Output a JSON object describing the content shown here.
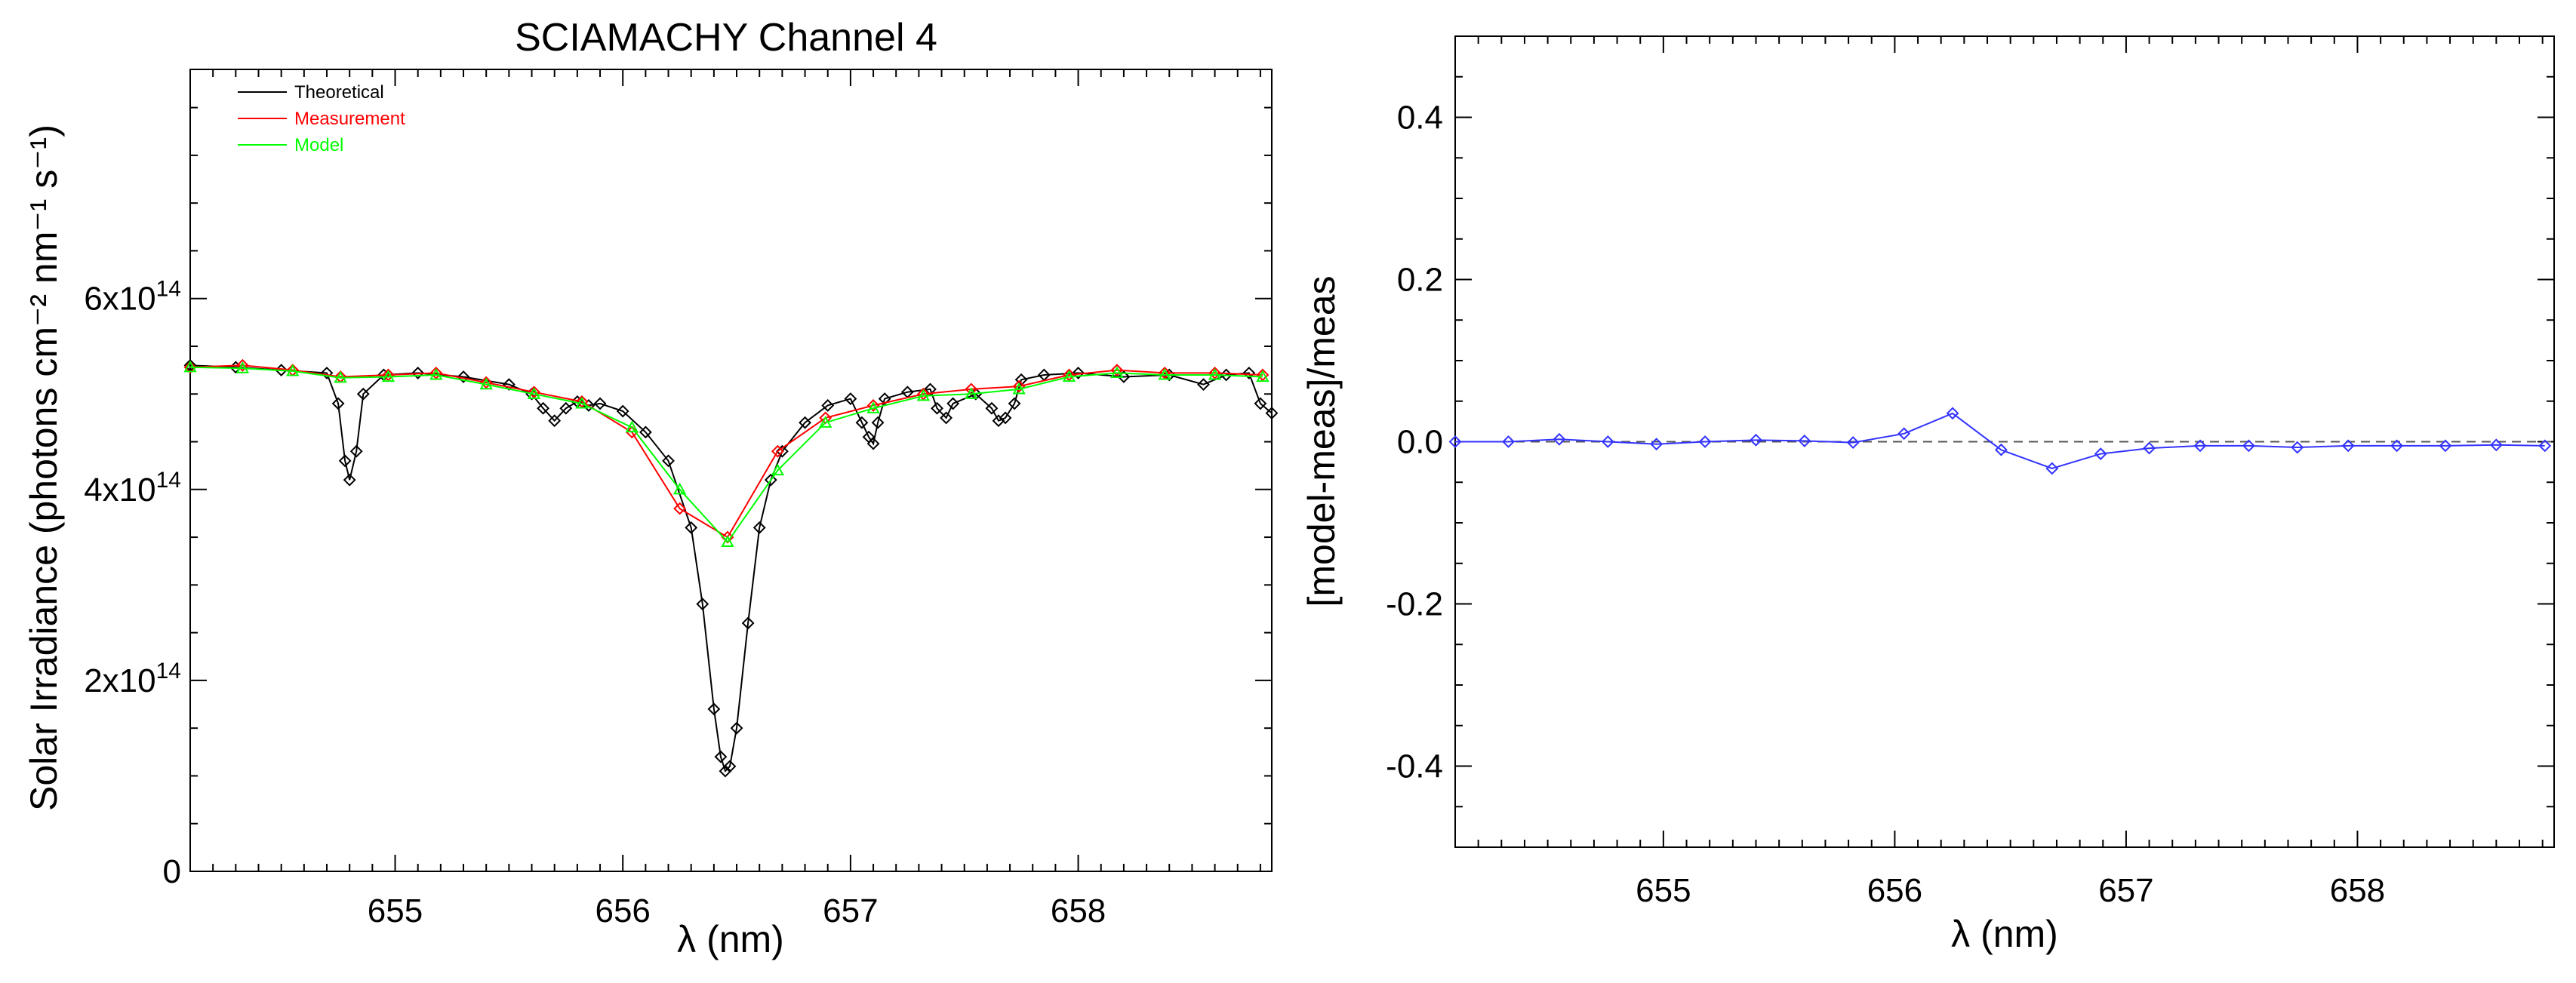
{
  "chart_data": [
    {
      "type": "line",
      "title": "SCIAMACHY Channel 4",
      "xlabel": "λ (nm)",
      "ylabel": "Solar Irradiance (photons cm⁻² nm⁻¹ s⁻¹)",
      "xlim": [
        654.1,
        658.85
      ],
      "ylim": [
        0,
        840000000000000.0
      ],
      "x_ticks": [
        655,
        656,
        657,
        658
      ],
      "x_tick_labels": [
        "655",
        "656",
        "657",
        "658"
      ],
      "y_ticks": [
        0,
        200000000000000.0,
        400000000000000.0,
        600000000000000.0
      ],
      "y_tick_labels": [
        {
          "text": "0",
          "base": "",
          "exp": ""
        },
        {
          "text": "",
          "base": "2x10",
          "exp": "14"
        },
        {
          "text": "",
          "base": "4x10",
          "exp": "14"
        },
        {
          "text": "",
          "base": "6x10",
          "exp": "14"
        }
      ],
      "legend": {
        "position": "top-left",
        "entries": [
          {
            "label": "Theoretical",
            "color": "#000000"
          },
          {
            "label": "Measurement",
            "color": "#ff0000"
          },
          {
            "label": "Model",
            "color": "#00ff00"
          }
        ]
      },
      "series": [
        {
          "name": "Theoretical",
          "color": "#000000",
          "marker": "diamond",
          "x": [
            654.1,
            654.3,
            654.5,
            654.7,
            654.75,
            654.78,
            654.8,
            654.83,
            654.86,
            654.95,
            655.1,
            655.3,
            655.5,
            655.6,
            655.65,
            655.7,
            655.75,
            655.8,
            655.85,
            655.9,
            656.0,
            656.1,
            656.2,
            656.3,
            656.35,
            656.4,
            656.43,
            656.45,
            656.47,
            656.5,
            656.55,
            656.6,
            656.65,
            656.7,
            656.8,
            656.9,
            657.0,
            657.05,
            657.08,
            657.1,
            657.12,
            657.15,
            657.25,
            657.35,
            657.38,
            657.42,
            657.45,
            657.55,
            657.62,
            657.65,
            657.68,
            657.72,
            657.75,
            657.85,
            658.0,
            658.2,
            658.4,
            658.55,
            658.65,
            658.75,
            658.8,
            658.85
          ],
          "y": [
            530000000000000.0,
            528000000000000.0,
            525000000000000.0,
            522000000000000.0,
            490000000000000.0,
            430000000000000.0,
            410000000000000.0,
            440000000000000.0,
            500000000000000.0,
            520000000000000.0,
            522000000000000.0,
            518000000000000.0,
            510000000000000.0,
            500000000000000.0,
            485000000000000.0,
            472000000000000.0,
            485000000000000.0,
            492000000000000.0,
            488000000000000.0,
            490000000000000.0,
            482000000000000.0,
            460000000000000.0,
            430000000000000.0,
            360000000000000.0,
            280000000000000.0,
            170000000000000.0,
            120000000000000.0,
            105000000000000.0,
            110000000000000.0,
            150000000000000.0,
            260000000000000.0,
            360000000000000.0,
            410000000000000.0,
            440000000000000.0,
            470000000000000.0,
            488000000000000.0,
            495000000000000.0,
            470000000000000.0,
            455000000000000.0,
            448000000000000.0,
            470000000000000.0,
            495000000000000.0,
            502000000000000.0,
            505000000000000.0,
            485000000000000.0,
            475000000000000.0,
            490000000000000.0,
            500000000000000.0,
            485000000000000.0,
            472000000000000.0,
            475000000000000.0,
            490000000000000.0,
            515000000000000.0,
            520000000000000.0,
            522000000000000.0,
            518000000000000.0,
            520000000000000.0,
            510000000000000.0,
            520000000000000.0,
            522000000000000.0,
            490000000000000.0,
            480000000000000.0
          ]
        },
        {
          "name": "Measurement",
          "color": "#ff0000",
          "marker": "diamond",
          "x": [
            654.1,
            654.33,
            654.55,
            654.76,
            654.97,
            655.18,
            655.4,
            655.61,
            655.82,
            656.04,
            656.25,
            656.46,
            656.68,
            656.89,
            657.1,
            657.32,
            657.53,
            657.74,
            657.96,
            658.17,
            658.38,
            658.6,
            658.81
          ],
          "y": [
            528000000000000.0,
            530000000000000.0,
            525000000000000.0,
            518000000000000.0,
            520000000000000.0,
            522000000000000.0,
            512000000000000.0,
            502000000000000.0,
            492000000000000.0,
            460000000000000.0,
            380000000000000.0,
            350000000000000.0,
            440000000000000.0,
            475000000000000.0,
            488000000000000.0,
            500000000000000.0,
            505000000000000.0,
            508000000000000.0,
            520000000000000.0,
            525000000000000.0,
            522000000000000.0,
            522000000000000.0,
            520000000000000.0
          ]
        },
        {
          "name": "Model",
          "color": "#00ff00",
          "marker": "triangle",
          "x": [
            654.1,
            654.33,
            654.55,
            654.76,
            654.97,
            655.18,
            655.4,
            655.61,
            655.82,
            656.04,
            656.25,
            656.46,
            656.68,
            656.89,
            657.1,
            657.32,
            657.53,
            657.74,
            657.96,
            658.17,
            658.38,
            658.6,
            658.81
          ],
          "y": [
            528000000000000.0,
            527000000000000.0,
            524000000000000.0,
            517000000000000.0,
            518000000000000.0,
            520000000000000.0,
            510000000000000.0,
            500000000000000.0,
            490000000000000.0,
            465000000000000.0,
            400000000000000.0,
            345000000000000.0,
            420000000000000.0,
            470000000000000.0,
            485000000000000.0,
            498000000000000.0,
            500000000000000.0,
            505000000000000.0,
            518000000000000.0,
            522000000000000.0,
            520000000000000.0,
            520000000000000.0,
            518000000000000.0
          ]
        }
      ]
    },
    {
      "type": "line",
      "title": "",
      "xlabel": "λ (nm)",
      "ylabel": "[model-meas]/meas",
      "xlim": [
        654.1,
        658.85
      ],
      "ylim": [
        -0.5,
        0.5
      ],
      "x_ticks": [
        655,
        656,
        657,
        658
      ],
      "x_tick_labels": [
        "655",
        "656",
        "657",
        "658"
      ],
      "y_ticks": [
        -0.4,
        -0.2,
        0.0,
        0.2,
        0.4
      ],
      "y_tick_labels": [
        "-0.4",
        "-0.2",
        "0.0",
        "0.2",
        "0.4"
      ],
      "reference_line": {
        "y": 0,
        "style": "dashed",
        "color": "#555555"
      },
      "series": [
        {
          "name": "[model-meas]/meas",
          "color": "#3333ff",
          "marker": "diamond",
          "x": [
            654.1,
            654.33,
            654.55,
            654.76,
            654.97,
            655.18,
            655.4,
            655.61,
            655.82,
            656.04,
            656.25,
            656.46,
            656.68,
            656.89,
            657.1,
            657.32,
            657.53,
            657.74,
            657.96,
            658.17,
            658.38,
            658.6,
            658.81
          ],
          "y": [
            0.0,
            0.0,
            0.003,
            0.0,
            -0.003,
            0.0,
            0.002,
            0.001,
            -0.001,
            0.01,
            0.035,
            -0.01,
            -0.033,
            -0.015,
            -0.008,
            -0.005,
            -0.005,
            -0.007,
            -0.005,
            -0.005,
            -0.005,
            -0.004,
            -0.005
          ]
        }
      ]
    }
  ]
}
